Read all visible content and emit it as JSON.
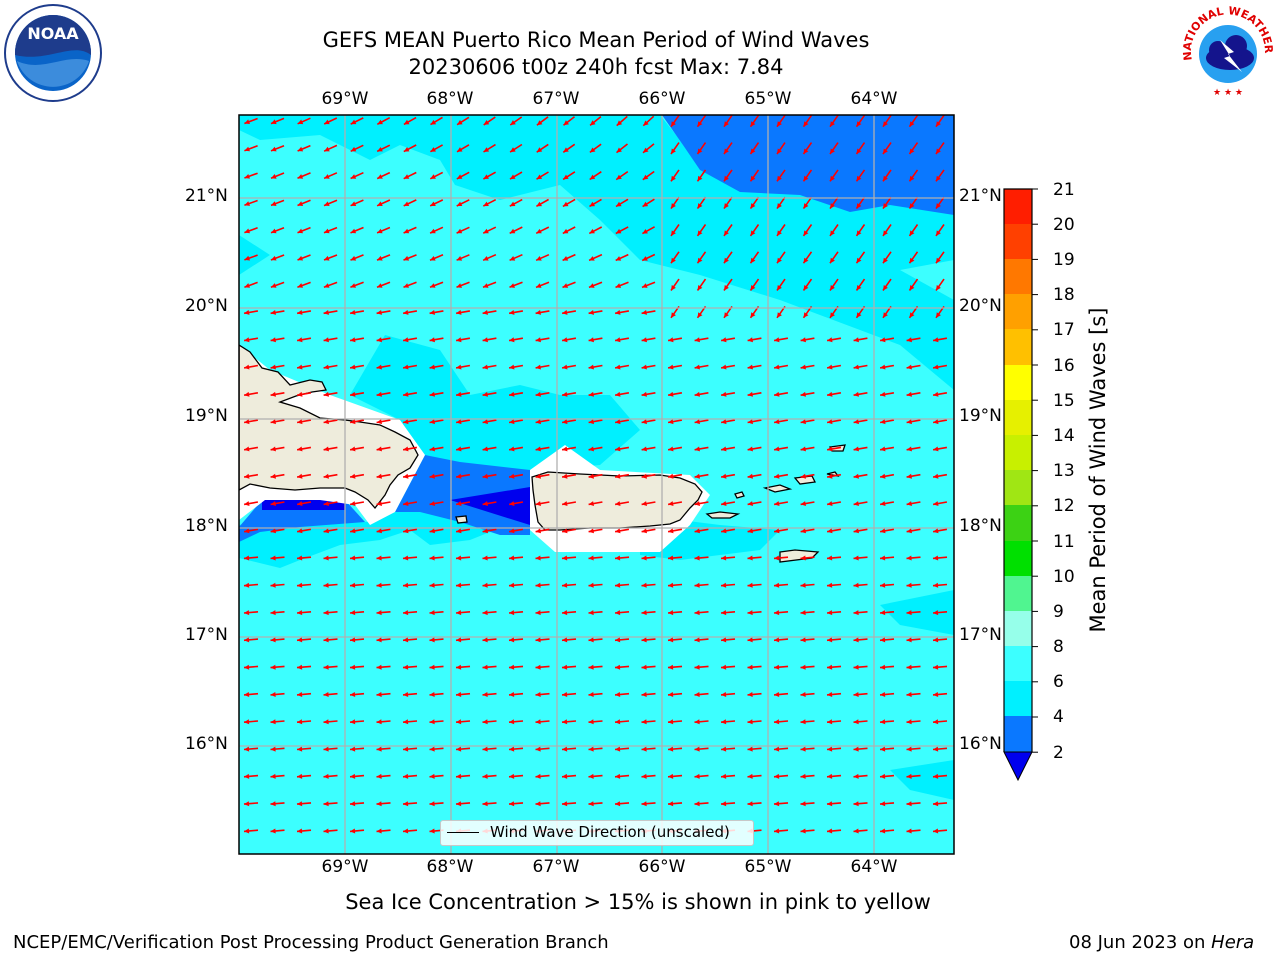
{
  "title": {
    "line1": "GEFS MEAN Puerto Rico Mean Period of Wind Waves",
    "line2": "20230606 t00z 240h fcst   Max: 7.84"
  },
  "axes": {
    "lon_labels": [
      "69°W",
      "68°W",
      "67°W",
      "66°W",
      "65°W",
      "64°W"
    ],
    "lat_labels": [
      "21°N",
      "20°N",
      "19°N",
      "18°N",
      "17°N",
      "16°N"
    ]
  },
  "colorbar": {
    "label": "Mean Period of Wind Waves [s]",
    "ticks": [
      "21",
      "20",
      "19",
      "18",
      "17",
      "16",
      "15",
      "14",
      "13",
      "12",
      "11",
      "10",
      "9",
      "8",
      "6",
      "4",
      "2"
    ],
    "colors": {
      "lt2": "#0000ee",
      "b2_4": "#0a78ff",
      "b4_6": "#00f0ff",
      "b6_8": "#3cffff",
      "b8_9": "#96ffea",
      "b9_10": "#50f590",
      "b10_11": "#00e000",
      "b11_12": "#3cd214",
      "b12_13": "#a0e614",
      "b13_14": "#c8f000",
      "b14_15": "#e6f000",
      "b15_16": "#ffff00",
      "b16_17": "#ffc000",
      "b17_18": "#ffa000",
      "b18_19": "#ff7800",
      "b19_20": "#ff4000",
      "b20_21": "#ff1e00"
    }
  },
  "legend": {
    "label": "Wind Wave Direction (unscaled)"
  },
  "map": {
    "land_color": "#eeecdc",
    "ocean_color": "#3cffff",
    "arrow_color": "#ff0000",
    "grid_color": "#b0b0b0"
  },
  "note": "Sea Ice Concentration > 15% is shown in pink to yellow",
  "footer": {
    "left": "NCEP/EMC/Verification Post Processing Product Generation Branch",
    "date": "08 Jun 2023 on",
    "host": "Hera"
  },
  "logos": {
    "noaa_text": "NOAA",
    "nws_text": "NATIONAL WEATHER SERVICE"
  }
}
